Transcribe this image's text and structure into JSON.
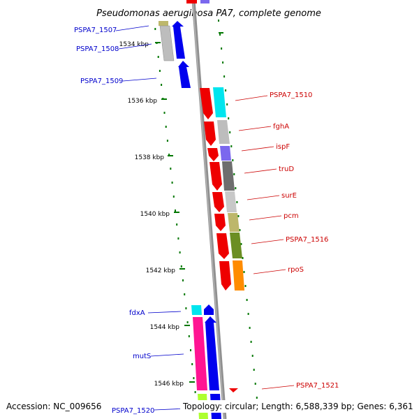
{
  "title": "Pseudomonas aeruginosa PA7, complete genome",
  "accession": "Accession: NC_009656",
  "topology": "Topology: circular; Length: 6,588,339 bp; Genes: 6,361",
  "ticks": [
    {
      "label": "1534 kbp"
    },
    {
      "label": "1536 kbp"
    },
    {
      "label": "1538 kbp"
    },
    {
      "label": "1540 kbp"
    },
    {
      "label": "1542 kbp"
    },
    {
      "label": "1544 kbp"
    },
    {
      "label": "1546 kbp"
    }
  ],
  "gene_labels_left": [
    {
      "name": "PSPA7_1507",
      "color": "#0000cc"
    },
    {
      "name": "PSPA7_1508",
      "color": "#0000cc"
    },
    {
      "name": "PSPA7_1509",
      "color": "#0000cc"
    },
    {
      "name": "fdxA",
      "color": "#0000cc"
    },
    {
      "name": "mutS",
      "color": "#0000cc"
    },
    {
      "name": "PSPA7_1520",
      "color": "#0000cc"
    }
  ],
  "gene_labels_right": [
    {
      "name": "PSPA7_1510",
      "color": "#cc0000"
    },
    {
      "name": "fghA",
      "color": "#cc0000"
    },
    {
      "name": "ispF",
      "color": "#cc0000"
    },
    {
      "name": "truD",
      "color": "#cc0000"
    },
    {
      "name": "surE",
      "color": "#cc0000"
    },
    {
      "name": "pcm",
      "color": "#cc0000"
    },
    {
      "name": "PSPA7_1516",
      "color": "#cc0000"
    },
    {
      "name": "rpoS",
      "color": "#cc0000"
    },
    {
      "name": "PSPA7_1521",
      "color": "#cc0000"
    }
  ],
  "colors": {
    "forward_strand": "#0000ee",
    "reverse_strand": "#ee0000",
    "backbone": "#808080",
    "tick": "#007700",
    "cyan": "#00e5ee",
    "silver": "#bdbdbd",
    "purple": "#7b68ee",
    "darkgray": "#6e6e6e",
    "lightgray": "#c8c8c8",
    "khaki": "#bdb76b",
    "olive": "#6b8e23",
    "orange": "#ff8c00",
    "pink": "#ff1493",
    "lime": "#adff2f",
    "tan": "#c8c080"
  }
}
